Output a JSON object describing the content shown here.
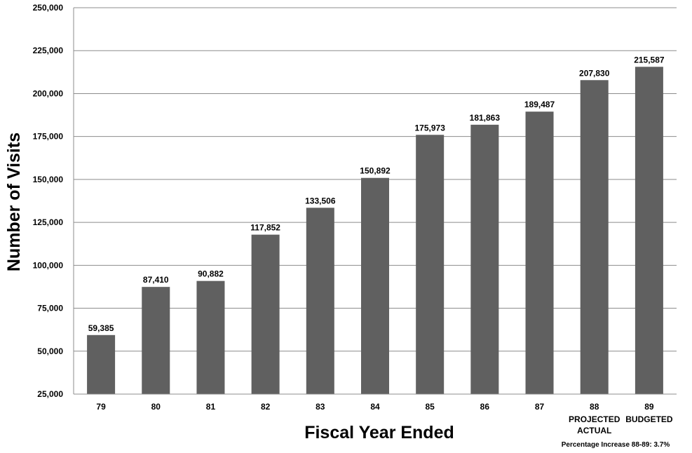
{
  "chart_data": {
    "type": "bar",
    "xlabel": "Fiscal Year Ended",
    "ylabel": "Number of  Visits",
    "ylim": [
      25000,
      250000
    ],
    "ytick_step": 25000,
    "y_tick_labels": [
      "25,000",
      "50,000",
      "75,000",
      "100,000",
      "125,000",
      "150,000",
      "175,000",
      "200,000",
      "225,000",
      "250,000"
    ],
    "grid": true,
    "categories": [
      {
        "label": "79",
        "sub": []
      },
      {
        "label": "80",
        "sub": []
      },
      {
        "label": "81",
        "sub": []
      },
      {
        "label": "82",
        "sub": []
      },
      {
        "label": "83",
        "sub": []
      },
      {
        "label": "84",
        "sub": []
      },
      {
        "label": "85",
        "sub": []
      },
      {
        "label": "86",
        "sub": []
      },
      {
        "label": "87",
        "sub": []
      },
      {
        "label": "88",
        "sub": [
          "PROJECTED",
          "ACTUAL"
        ]
      },
      {
        "label": "89",
        "sub": [
          "BUDGETED"
        ]
      }
    ],
    "values": [
      59385,
      87410,
      90882,
      117852,
      133506,
      150892,
      175973,
      181863,
      189487,
      207830,
      215587
    ],
    "data_labels": [
      "59,385",
      "87,410",
      "90,882",
      "117,852",
      "133,506",
      "150,892",
      "175,973",
      "181,863",
      "189,487",
      "207,830",
      "215,587"
    ],
    "annotation": "Percentage Increase 88-89: 3.7%",
    "bar_color": "#606060",
    "grid_color": "#8c8c8c"
  }
}
